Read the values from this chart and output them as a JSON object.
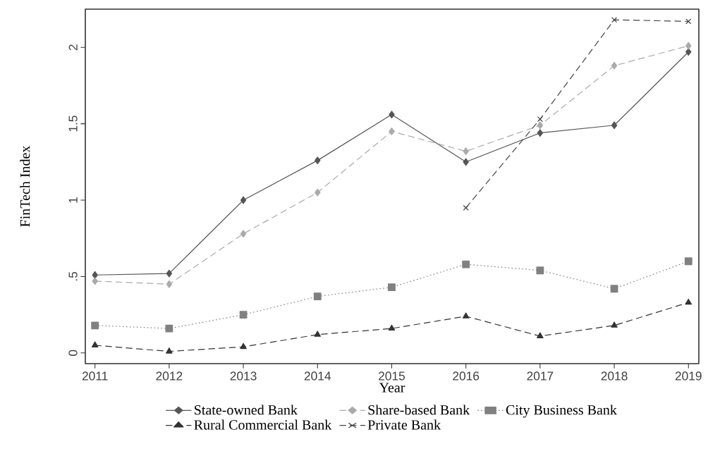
{
  "chart_data": {
    "type": "line",
    "xlabel": "Year",
    "ylabel": "FinTech Index",
    "x": [
      2011,
      2012,
      2013,
      2014,
      2015,
      2016,
      2017,
      2018,
      2019
    ],
    "xlim": [
      2010.87,
      2019.14
    ],
    "xticks": [
      2011,
      2012,
      2013,
      2014,
      2015,
      2016,
      2017,
      2018,
      2019
    ],
    "ylim": [
      -0.07,
      2.25
    ],
    "yticks": [
      0,
      {
        "value": 0.5,
        "label": ".5"
      },
      1,
      1.5,
      2
    ],
    "legend": "bottom",
    "grid": false,
    "series": [
      {
        "name": "State-owned Bank",
        "color": "#555555",
        "marker": "diamond",
        "line_style": "solid",
        "values": [
          0.51,
          0.52,
          1.0,
          1.26,
          1.56,
          1.25,
          1.44,
          1.49,
          1.97
        ]
      },
      {
        "name": "Share-based Bank",
        "color": "#aaaaaa",
        "marker": "diamond",
        "line_style": "dashed",
        "values": [
          0.47,
          0.45,
          0.78,
          1.05,
          1.45,
          1.32,
          1.49,
          1.88,
          2.01
        ]
      },
      {
        "name": "City Business Bank",
        "color": "#808080",
        "marker": "square",
        "line_style": "dotted",
        "values": [
          0.18,
          0.16,
          0.25,
          0.37,
          0.43,
          0.58,
          0.54,
          0.42,
          0.6
        ]
      },
      {
        "name": "Rural Commercial Bank",
        "color": "#333333",
        "marker": "triangle",
        "line_style": "dashed",
        "values": [
          0.05,
          0.01,
          0.04,
          0.12,
          0.16,
          0.24,
          0.11,
          0.18,
          0.33
        ]
      },
      {
        "name": "Private Bank",
        "color": "#444444",
        "marker": "cross",
        "line_style": "dashed",
        "values": [
          null,
          null,
          null,
          null,
          null,
          0.95,
          1.53,
          2.18,
          2.17
        ]
      }
    ]
  }
}
